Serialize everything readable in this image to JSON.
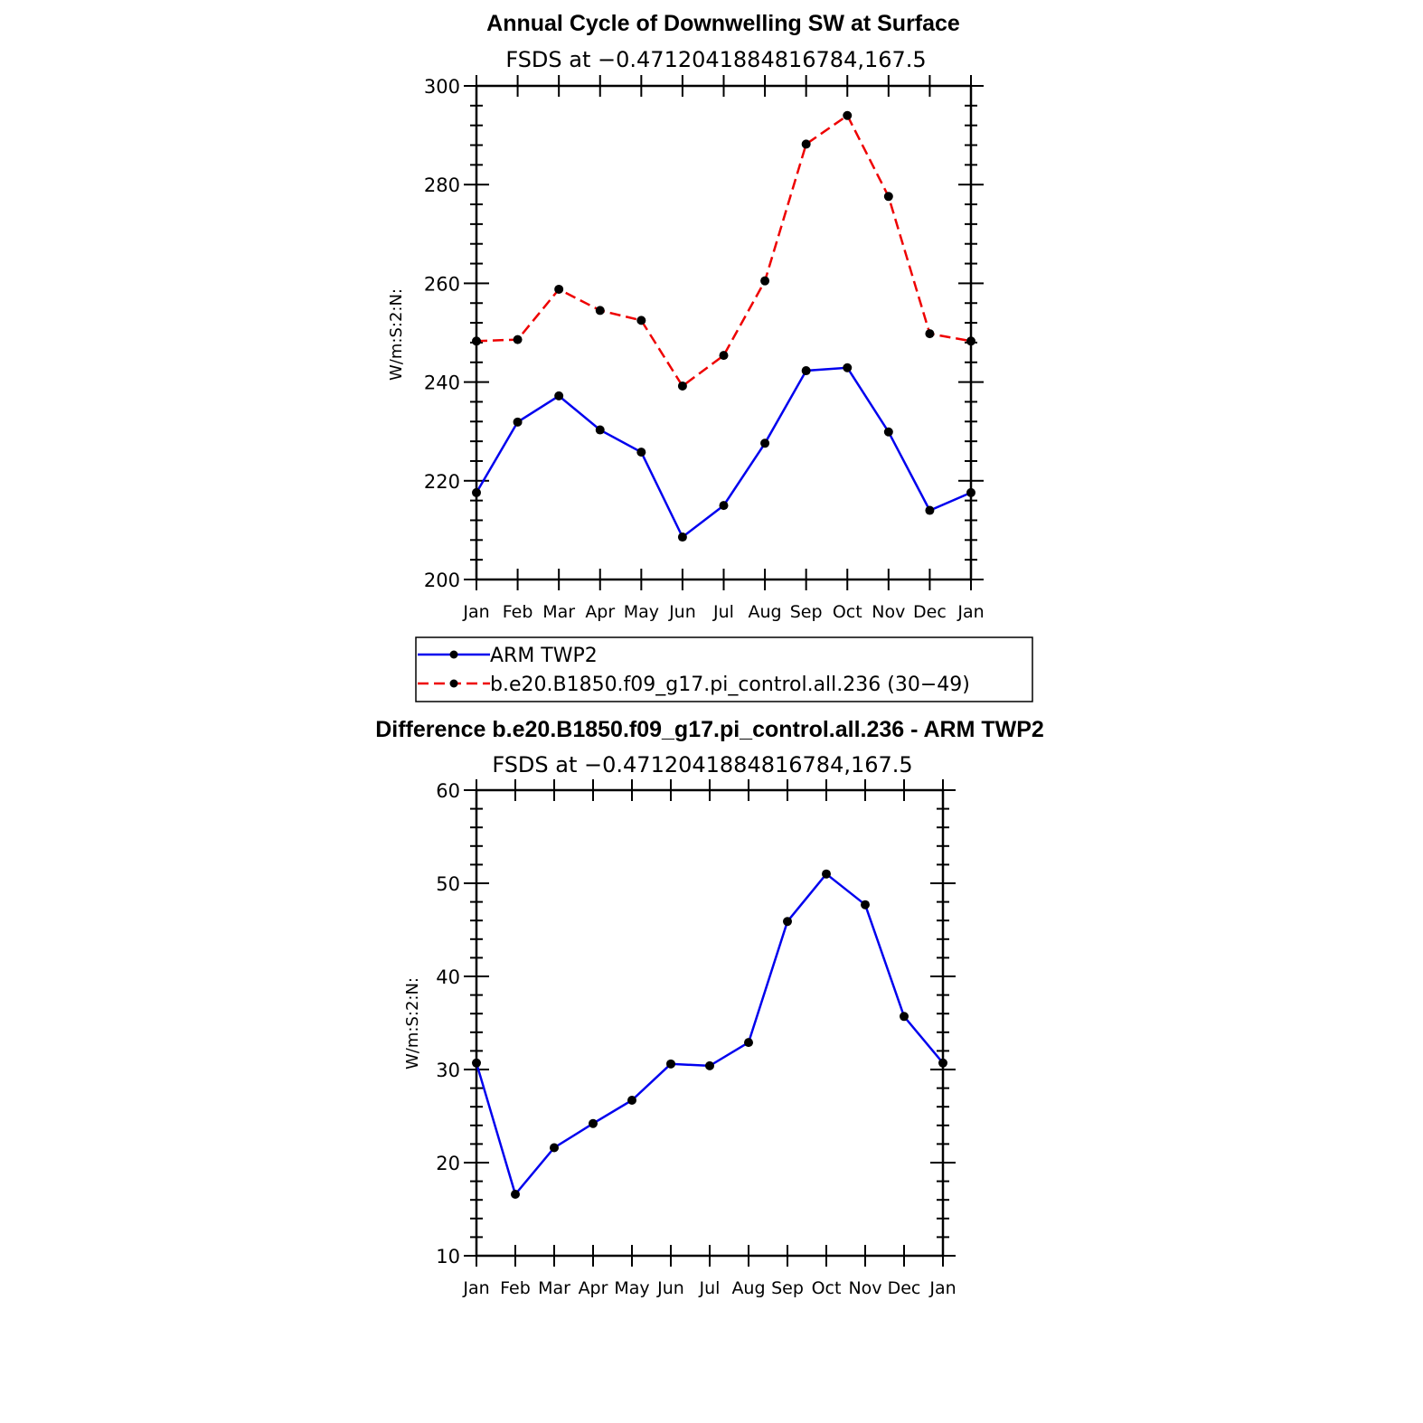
{
  "colors": {
    "obs": "#0000ee",
    "model": "#ee0000",
    "axis": "#000000",
    "marker": "#000000"
  },
  "chart_data": [
    {
      "type": "line",
      "title": "Annual Cycle of Downwelling SW at Surface",
      "subtitle": "FSDS at −0.4712041884816784,167.5",
      "ylabel": "W/m:S:2:N:",
      "xlabel": "",
      "categories": [
        "Jan",
        "Feb",
        "Mar",
        "Apr",
        "May",
        "Jun",
        "Jul",
        "Aug",
        "Sep",
        "Oct",
        "Nov",
        "Dec",
        "Jan"
      ],
      "ylim": [
        200,
        300
      ],
      "yticks": [
        "200",
        "220",
        "240",
        "260",
        "280",
        "300"
      ],
      "series": [
        {
          "name": "ARM TWP2",
          "style": "solid",
          "color": "#0000ee",
          "values": [
            217.6,
            231.9,
            237.2,
            230.3,
            225.8,
            208.6,
            215.0,
            227.6,
            242.3,
            242.9,
            229.9,
            214.0,
            217.6
          ]
        },
        {
          "name": "b.e20.B1850.f09_g17.pi_control.all.236 (30−49)",
          "style": "dashed",
          "color": "#ee0000",
          "values": [
            248.3,
            248.6,
            258.8,
            254.5,
            252.5,
            239.2,
            245.4,
            260.5,
            288.2,
            294.0,
            277.6,
            249.8,
            248.3
          ]
        }
      ],
      "legend": "below"
    },
    {
      "type": "line",
      "title": "Difference b.e20.B1850.f09_g17.pi_control.all.236 - ARM TWP2",
      "subtitle": "FSDS at −0.4712041884816784,167.5",
      "ylabel": "W/m:S:2:N:",
      "xlabel": "",
      "categories": [
        "Jan",
        "Feb",
        "Mar",
        "Apr",
        "May",
        "Jun",
        "Jul",
        "Aug",
        "Sep",
        "Oct",
        "Nov",
        "Dec",
        "Jan"
      ],
      "ylim": [
        10,
        60
      ],
      "yticks": [
        "10",
        "20",
        "30",
        "40",
        "50",
        "60"
      ],
      "series": [
        {
          "style": "solid",
          "color": "#0000ee",
          "values": [
            30.7,
            16.6,
            21.6,
            24.2,
            26.7,
            30.6,
            30.4,
            32.9,
            45.9,
            51.0,
            47.7,
            35.7,
            30.7
          ]
        }
      ]
    }
  ]
}
